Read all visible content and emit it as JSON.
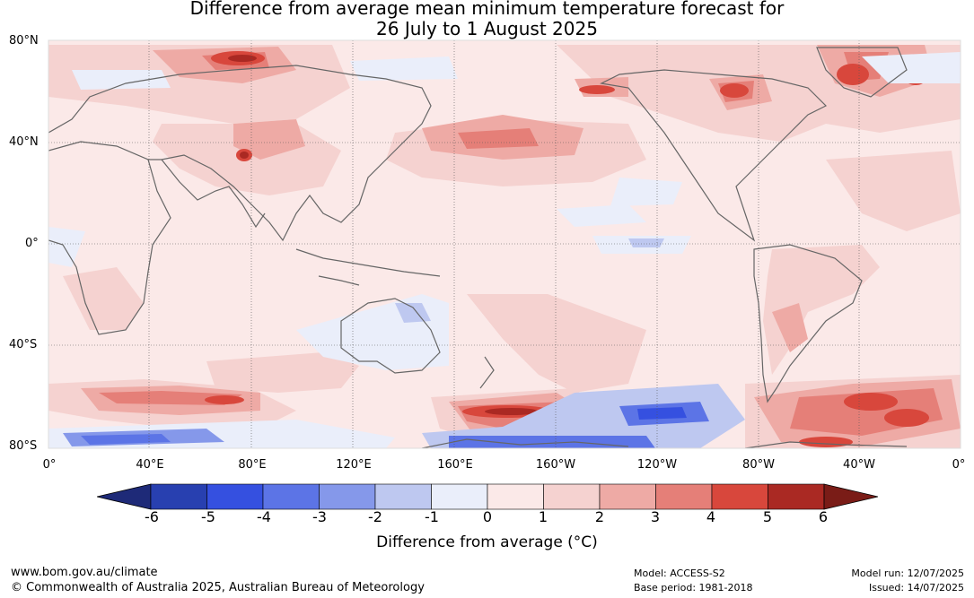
{
  "title": {
    "line1": "Difference from average mean minimum temperature forecast for",
    "line2": "26 July to 1 August 2025"
  },
  "map": {
    "lat_labels": [
      "80°N",
      "40°N",
      "0°",
      "40°S",
      "80°S"
    ],
    "lon_labels": [
      "0°",
      "40°E",
      "80°E",
      "120°E",
      "160°E",
      "160°W",
      "120°W",
      "80°W",
      "40°W",
      "0°"
    ],
    "background_color": "#fbe9e8",
    "coastline_color": "#666666"
  },
  "colorbar": {
    "ticks": [
      "-6",
      "-5",
      "-4",
      "-3",
      "-2",
      "-1",
      "0",
      "1",
      "2",
      "3",
      "4",
      "5",
      "6"
    ],
    "colors": [
      "#1e2a78",
      "#2840b0",
      "#3550e0",
      "#5c74e6",
      "#8598ea",
      "#bec8f0",
      "#eaeefa",
      "#fbe9e8",
      "#f5d2d0",
      "#eeaaa5",
      "#e57f78",
      "#d8473c",
      "#aa2923",
      "#7a1c17"
    ],
    "label": "Difference from average (°C)"
  },
  "footer": {
    "url": "www.bom.gov.au/climate",
    "copyright": "© Commonwealth of Australia 2025, Australian Bureau of Meteorology",
    "model": "Model: ACCESS-S2",
    "base_period": "Base period: 1981-2018",
    "model_run": "Model run: 12/07/2025",
    "issued": "Issued: 14/07/2025"
  }
}
